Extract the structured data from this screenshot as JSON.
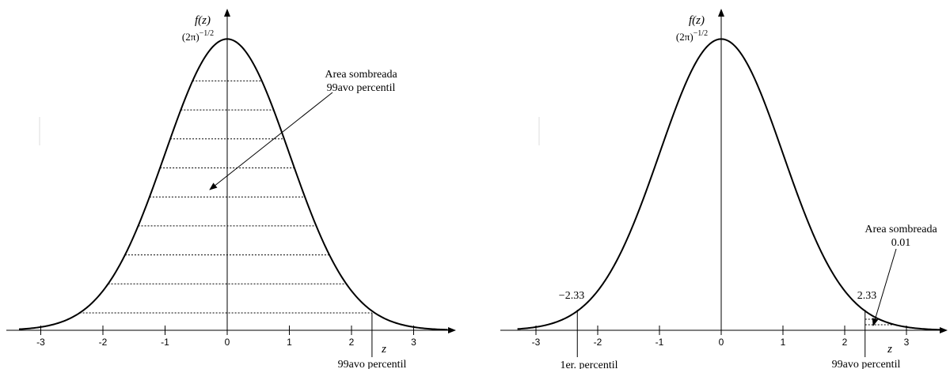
{
  "chart_data": [
    {
      "type": "area",
      "function_label": "f(z)",
      "peak_label_base": "(2π)",
      "peak_label_exp": "−1/2",
      "x_axis_label": "z",
      "xlim": [
        -3.3,
        3.6
      ],
      "ylim": [
        0,
        0.4
      ],
      "tick_labels": [
        "-3",
        "-2",
        "-1",
        "0",
        "1",
        "2",
        "3"
      ],
      "tick_values": [
        -3,
        -2,
        -1,
        0,
        1,
        2,
        3
      ],
      "percentile_marker": {
        "z": 2.33,
        "label": "99avo percentil"
      },
      "shaded_region": {
        "from": -3.3,
        "to": 2.33
      },
      "annotation": {
        "line1": "Area sombreada",
        "line2": "99avo percentil"
      },
      "curve": "standard normal density"
    },
    {
      "type": "area",
      "function_label": "f(z)",
      "peak_label_base": "(2π)",
      "peak_label_exp": "−1/2",
      "x_axis_label": "z",
      "xlim": [
        -3.3,
        3.6
      ],
      "ylim": [
        0,
        0.4
      ],
      "tick_labels": [
        "-3",
        "-2",
        "-1",
        "0",
        "1",
        "2",
        "3"
      ],
      "tick_values": [
        -3,
        -2,
        -1,
        0,
        1,
        2,
        3
      ],
      "left_marker": {
        "z": -2.33,
        "value_label": "−2.33",
        "label": "1er. percentil"
      },
      "right_marker": {
        "z": 2.33,
        "value_label": "2.33",
        "label": "99avo percentil"
      },
      "shaded_region": {
        "from": 2.33,
        "to": 3.6
      },
      "annotation": {
        "line1": "Area sombreada",
        "line2": "0.01"
      },
      "curve": "standard normal density"
    }
  ]
}
